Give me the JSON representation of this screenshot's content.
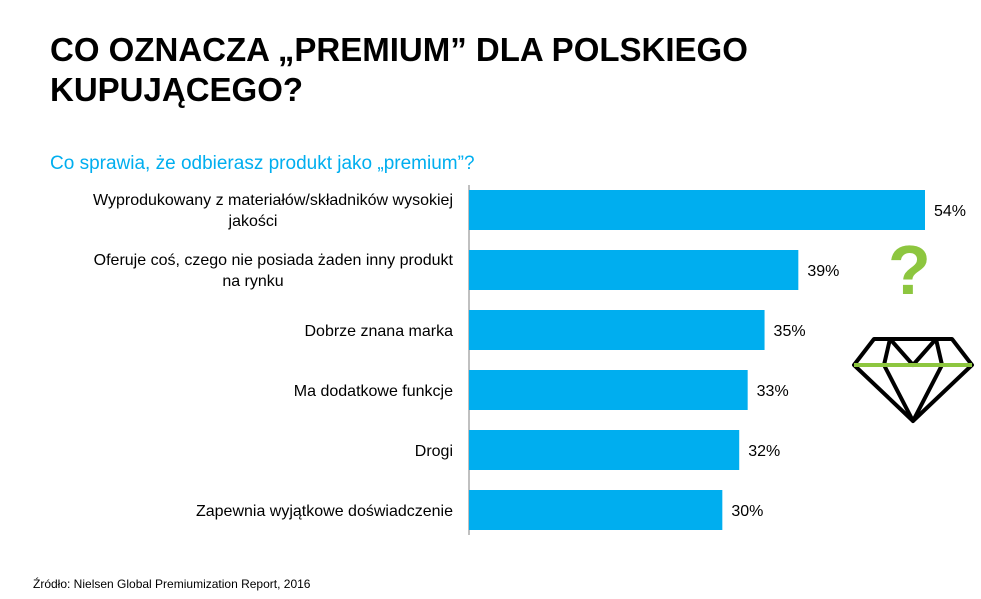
{
  "title": "CO OZNACZA „PREMIUM” DLA POLSKIEGO KUPUJĄCEGO?",
  "source": "Źródło: Nielsen Global Premiumization Report, 2016",
  "icons": {
    "question": "?",
    "question_color": "#8dc63f",
    "diamond": "diamond-icon"
  },
  "chart_data": {
    "type": "bar",
    "orientation": "horizontal",
    "title": "Co sprawia, że odbierasz produkt jako „premium”?",
    "categories": [
      [
        "Wyprodukowany z materiałów/składników wysokiej",
        "jakości"
      ],
      [
        "Oferuje coś, czego nie posiada żaden inny produkt",
        "na rynku"
      ],
      [
        "Dobrze znana marka"
      ],
      [
        "Ma dodatkowe funkcje"
      ],
      [
        "Drogi"
      ],
      [
        "Zapewnia wyjątkowe doświadczenie"
      ]
    ],
    "values": [
      54,
      39,
      35,
      33,
      32,
      30
    ],
    "value_labels": [
      "54%",
      "39%",
      "35%",
      "33%",
      "32%",
      "30%"
    ],
    "xlim": [
      0,
      54
    ],
    "bar_color": "#00aeef",
    "grid": false,
    "legend": "none"
  }
}
